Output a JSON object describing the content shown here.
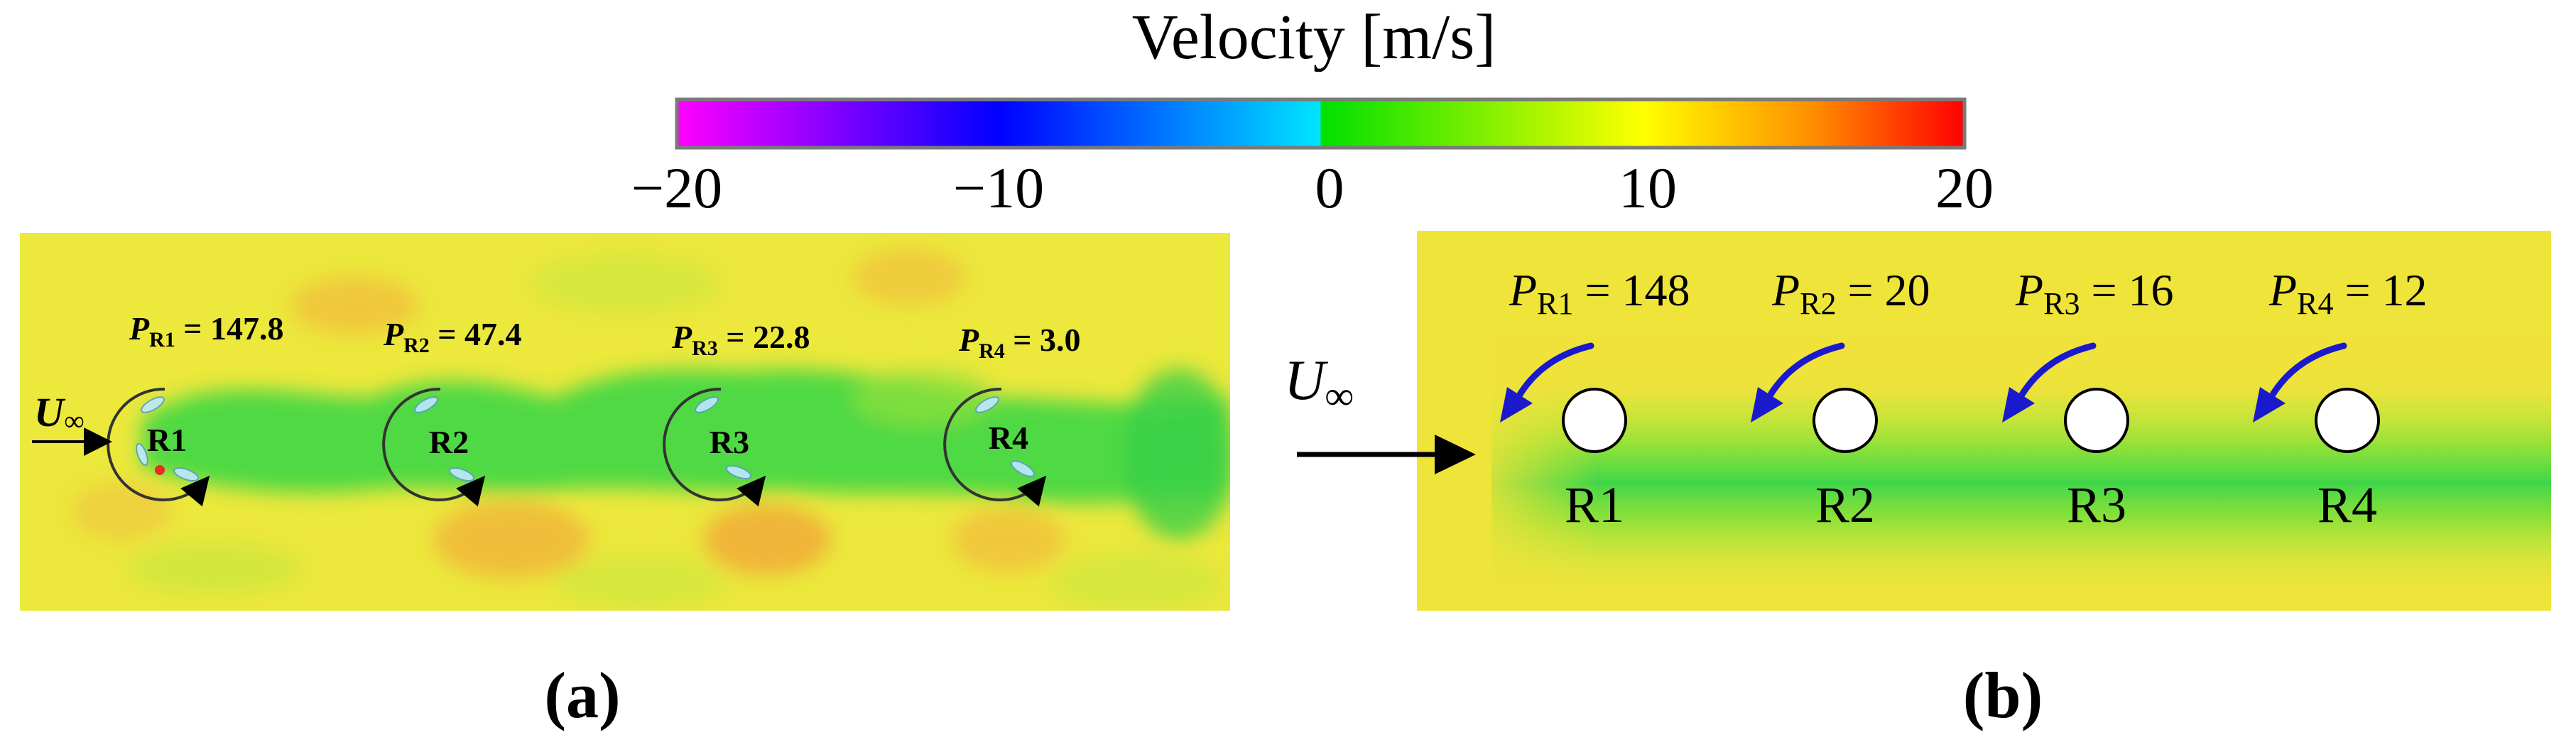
{
  "colorbar": {
    "title": "Velocity [m/s]",
    "ticks": [
      "−20",
      "−10",
      "0",
      "10",
      "20"
    ],
    "tick_values": [
      -20,
      -10,
      0,
      10,
      20
    ],
    "range": [
      -20,
      20
    ],
    "colors": {
      "at_minus20": "#ff00ff",
      "at_minus10": "#0000ff",
      "at_zero_neg": "#00e5ff",
      "at_zero_pos": "#00e000",
      "at_10": "#ffff00",
      "at_20": "#ff0000"
    }
  },
  "panel_a": {
    "caption": "(a)",
    "freestream_label": "U",
    "freestream_sub": "∞",
    "rotors": [
      {
        "label": "R1",
        "power_prefix": "P",
        "power_sub": "R1",
        "power_eq": " = 147.8"
      },
      {
        "label": "R2",
        "power_prefix": "P",
        "power_sub": "R2",
        "power_eq": " = 47.4"
      },
      {
        "label": "R3",
        "power_prefix": "P",
        "power_sub": "R3",
        "power_eq": " = 22.8"
      },
      {
        "label": "R4",
        "power_prefix": "P",
        "power_sub": "R4",
        "power_eq": " = 3.0"
      }
    ]
  },
  "panel_b": {
    "caption": "(b)",
    "freestream_label": "U",
    "freestream_sub": "∞",
    "rotors": [
      {
        "label": "R1",
        "power_prefix": "P",
        "power_sub": "R1",
        "power_eq": " = 148"
      },
      {
        "label": "R2",
        "power_prefix": "P",
        "power_sub": "R2",
        "power_eq": " = 20"
      },
      {
        "label": "R3",
        "power_prefix": "P",
        "power_sub": "R3",
        "power_eq": " = 16"
      },
      {
        "label": "R4",
        "power_prefix": "P",
        "power_sub": "R4",
        "power_eq": " = 12"
      }
    ]
  },
  "styles": {
    "field_background": "#eaea3a",
    "wake_color": "#3fd63f",
    "arrow_blue": "#1a1acc",
    "cylinder_fill": "#ffffff"
  }
}
